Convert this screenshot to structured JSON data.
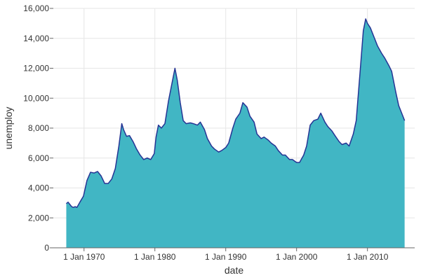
{
  "chart_data": {
    "type": "area",
    "xlabel": "date",
    "ylabel": "unemploy",
    "xlim": [
      "1965-09-01",
      "2016-09-01"
    ],
    "ylim": [
      0,
      16000
    ],
    "grid": true,
    "yticks": [
      0,
      2000,
      4000,
      6000,
      8000,
      10000,
      12000,
      14000,
      16000
    ],
    "ytick_labels": [
      "0",
      "2,000",
      "4,000",
      "6,000",
      "8,000",
      "10,000",
      "12,000",
      "14,000",
      "16,000"
    ],
    "xticks": [
      "1970-01-01",
      "1980-01-01",
      "1990-01-01",
      "2000-01-01",
      "2010-01-01"
    ],
    "xtick_labels": [
      "1 Jan 1970",
      "1 Jan 1980",
      "1 Jan 1990",
      "1 Jan 2000",
      "1 Jan 2010"
    ],
    "colors": {
      "fill": "#41b6c4",
      "line": "#253494"
    },
    "x": [
      "1967-07-01",
      "1967-10-01",
      "1968-01-01",
      "1968-04-01",
      "1968-07-01",
      "1968-10-01",
      "1969-01-01",
      "1969-06-01",
      "1969-12-01",
      "1970-06-01",
      "1970-12-01",
      "1971-06-01",
      "1971-12-01",
      "1972-06-01",
      "1972-12-01",
      "1973-06-01",
      "1973-12-01",
      "1974-06-01",
      "1974-12-01",
      "1975-05-01",
      "1975-08-01",
      "1976-01-01",
      "1976-06-01",
      "1976-12-01",
      "1977-06-01",
      "1977-12-01",
      "1978-06-01",
      "1978-12-01",
      "1979-06-01",
      "1979-12-01",
      "1980-03-01",
      "1980-07-01",
      "1980-12-01",
      "1981-06-01",
      "1981-12-01",
      "1982-06-01",
      "1982-11-01",
      "1983-03-01",
      "1983-08-01",
      "1984-01-01",
      "1984-06-01",
      "1985-01-01",
      "1985-06-01",
      "1986-01-01",
      "1986-06-01",
      "1987-01-01",
      "1987-06-01",
      "1988-01-01",
      "1988-06-01",
      "1989-01-01",
      "1989-06-01",
      "1990-01-01",
      "1990-06-01",
      "1991-01-01",
      "1991-06-01",
      "1992-01-01",
      "1992-06-01",
      "1993-01-01",
      "1993-06-01",
      "1994-01-01",
      "1994-06-01",
      "1995-01-01",
      "1995-06-01",
      "1996-01-01",
      "1996-06-01",
      "1997-01-01",
      "1997-06-01",
      "1998-01-01",
      "1998-06-01",
      "1999-01-01",
      "1999-06-01",
      "2000-01-01",
      "2000-06-01",
      "2001-01-01",
      "2001-06-01",
      "2001-12-01",
      "2002-06-01",
      "2003-01-01",
      "2003-06-01",
      "2004-01-01",
      "2004-06-01",
      "2005-01-01",
      "2005-06-01",
      "2006-01-01",
      "2006-06-01",
      "2007-01-01",
      "2007-06-01",
      "2008-01-01",
      "2008-06-01",
      "2009-01-01",
      "2009-06-01",
      "2009-10-01",
      "2010-01-01",
      "2010-06-01",
      "2011-01-01",
      "2011-06-01",
      "2012-01-01",
      "2012-06-01",
      "2013-01-01",
      "2013-06-01",
      "2014-01-01",
      "2014-06-01",
      "2015-01-01",
      "2015-04-01"
    ],
    "y": [
      2950,
      3050,
      2900,
      2750,
      2700,
      2750,
      2700,
      3050,
      3450,
      4500,
      5050,
      5000,
      5100,
      4800,
      4300,
      4300,
      4600,
      5300,
      6800,
      8300,
      7900,
      7450,
      7500,
      7100,
      6600,
      6200,
      5900,
      6000,
      5900,
      6300,
      7400,
      8200,
      8000,
      8300,
      9800,
      11000,
      12000,
      11200,
      9700,
      8500,
      8300,
      8350,
      8300,
      8200,
      8400,
      7900,
      7300,
      6800,
      6600,
      6400,
      6500,
      6700,
      7000,
      8000,
      8600,
      9000,
      9700,
      9400,
      8800,
      8400,
      7600,
      7300,
      7400,
      7200,
      7000,
      6800,
      6500,
      6200,
      6200,
      5900,
      5900,
      5700,
      5700,
      6200,
      6800,
      8200,
      8500,
      8600,
      9000,
      8400,
      8100,
      7800,
      7500,
      7100,
      6900,
      7000,
      6800,
      7600,
      8500,
      12000,
      14500,
      15300,
      15000,
      14700,
      14000,
      13500,
      13000,
      12700,
      12200,
      11800,
      10400,
      9500,
      8800,
      8500
    ]
  }
}
